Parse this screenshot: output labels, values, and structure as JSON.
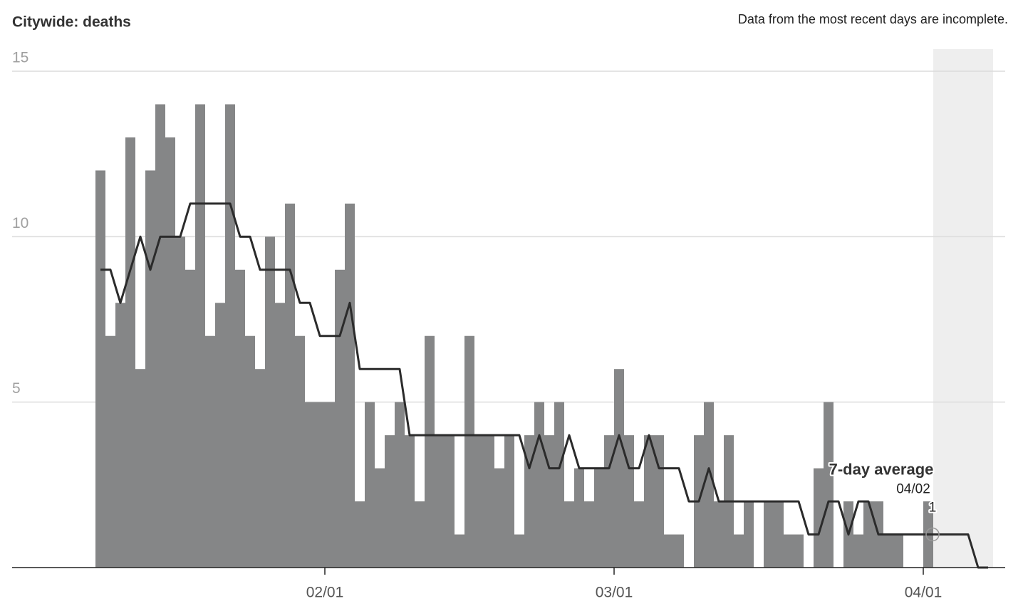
{
  "chart_data": {
    "type": "bar",
    "title": "Citywide: deaths",
    "note": "Data from the most recent days are incomplete.",
    "categories": [
      null,
      null,
      null,
      null,
      null,
      null,
      null,
      null,
      null,
      null,
      null,
      null,
      null,
      null,
      null,
      null,
      null,
      null,
      null,
      null,
      null,
      null,
      null,
      "02/01",
      null,
      null,
      null,
      null,
      null,
      null,
      null,
      null,
      null,
      null,
      null,
      null,
      null,
      null,
      null,
      null,
      null,
      null,
      null,
      null,
      null,
      null,
      null,
      null,
      null,
      null,
      null,
      null,
      "03/01",
      null,
      null,
      null,
      null,
      null,
      null,
      null,
      null,
      null,
      null,
      null,
      null,
      null,
      null,
      null,
      null,
      null,
      null,
      null,
      null,
      null,
      null,
      null,
      null,
      null,
      null,
      null,
      null,
      null,
      null,
      "04/01",
      null,
      null,
      null,
      null,
      null,
      null
    ],
    "series": [
      {
        "name": "deaths",
        "color": "#858687",
        "values": [
          12,
          7,
          8,
          13,
          6,
          12,
          14,
          13,
          10,
          9,
          14,
          7,
          8,
          14,
          9,
          7,
          6,
          10,
          8,
          11,
          7,
          5,
          5,
          5,
          9,
          11,
          2,
          5,
          3,
          4,
          5,
          4,
          2,
          7,
          4,
          4,
          1,
          7,
          4,
          4,
          3,
          4,
          1,
          4,
          5,
          4,
          5,
          2,
          3,
          2,
          3,
          4,
          6,
          4,
          2,
          4,
          4,
          1,
          1,
          0,
          4,
          5,
          2,
          4,
          1,
          2,
          0,
          2,
          2,
          1,
          1,
          0,
          3,
          5,
          0,
          2,
          1,
          2,
          2,
          1,
          1,
          0,
          0,
          2,
          0,
          0,
          0,
          0,
          0,
          0
        ]
      },
      {
        "name": "7-day average",
        "color": "#2b2b2b",
        "values": [
          9,
          9,
          8,
          9,
          10,
          9,
          10,
          10,
          10,
          11,
          11,
          11,
          11,
          11,
          10,
          10,
          9,
          9,
          9,
          9,
          8,
          8,
          7,
          7,
          7,
          8,
          6,
          6,
          6,
          6,
          6,
          4,
          4,
          4,
          4,
          4,
          4,
          4,
          4,
          4,
          4,
          4,
          4,
          3,
          4,
          3,
          3,
          4,
          3,
          3,
          3,
          3,
          4,
          3,
          3,
          4,
          3,
          3,
          3,
          2,
          2,
          3,
          2,
          2,
          2,
          2,
          2,
          2,
          2,
          2,
          2,
          1,
          1,
          2,
          2,
          1,
          2,
          2,
          1,
          1,
          1,
          1,
          1,
          1,
          1,
          1,
          1,
          1,
          0,
          0
        ]
      }
    ],
    "annotation": {
      "label": "7-day average",
      "date": "04/02",
      "value": 1
    },
    "ylim": [
      0,
      15
    ],
    "yticks": [
      5,
      10,
      15
    ],
    "grid": true
  }
}
